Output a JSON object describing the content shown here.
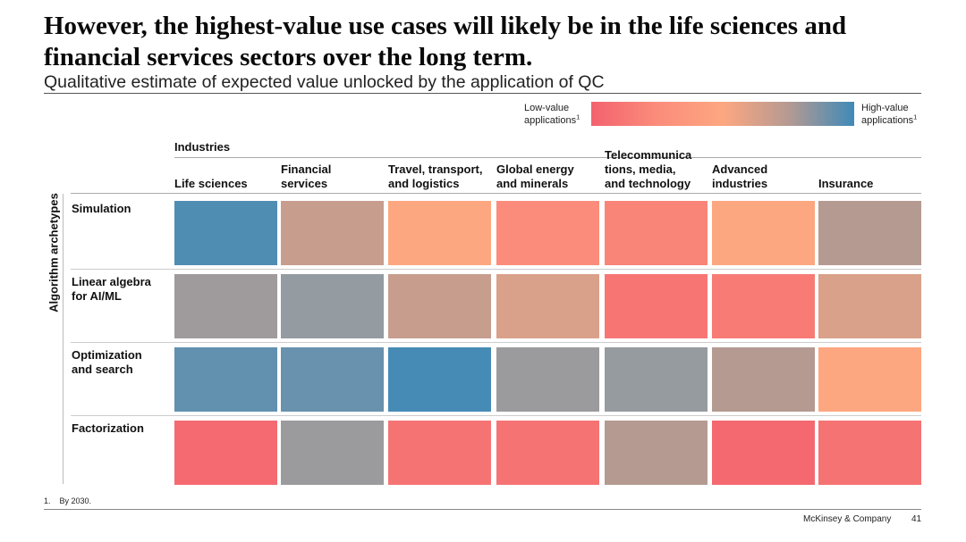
{
  "slide": {
    "title": "However, the highest-value use cases will likely be in the life sciences and financial services sectors over the long term.",
    "subtitle": "Qualitative estimate of expected value unlocked by the application of QC"
  },
  "legend": {
    "low_label": "Low-value applications",
    "low_marker": "1",
    "high_label": "High-value applications",
    "high_marker": "1",
    "low_color": "#f3626e",
    "high_color": "#3f8ab8"
  },
  "chart_data": {
    "type": "heatmap",
    "title": "Qualitative estimate of expected value unlocked by the application of QC",
    "x_group_label": "Industries",
    "y_axis_label": "Algorithm archetypes",
    "columns": [
      "Life sciences",
      "Financial services",
      "Travel, transport, and logistics",
      "Global energy and minerals",
      "Telecommunications, media, and technology",
      "Advanced industries",
      "Insurance"
    ],
    "column_display": [
      [
        "Life sciences"
      ],
      [
        "Financial",
        "services"
      ],
      [
        "Travel, transport,",
        "and logistics"
      ],
      [
        "Global energy",
        "and minerals"
      ],
      [
        "Telecommunica",
        "tions, media,",
        "and technology"
      ],
      [
        "Advanced",
        "industries"
      ],
      [
        "Insurance"
      ]
    ],
    "rows": [
      "Simulation",
      "Linear algebra for AI/ML",
      "Optimization and search",
      "Factorization"
    ],
    "row_display": [
      [
        "Simulation"
      ],
      [
        "Linear algebra",
        "for AI/ML"
      ],
      [
        "Optimization",
        "and search"
      ],
      [
        "Factorization"
      ]
    ],
    "scale": "0 = low-value applications, 1 = high-value applications",
    "values": [
      [
        0.95,
        0.55,
        0.4,
        0.25,
        0.2,
        0.4,
        0.6
      ],
      [
        0.7,
        0.75,
        0.55,
        0.5,
        0.12,
        0.15,
        0.5
      ],
      [
        0.9,
        0.88,
        0.98,
        0.72,
        0.74,
        0.6,
        0.4
      ],
      [
        0.05,
        0.72,
        0.1,
        0.1,
        0.6,
        0.04,
        0.1
      ]
    ],
    "value_scale": [
      {
        "stop": 0.0,
        "color": "#f3626e"
      },
      {
        "stop": 0.25,
        "color": "#fb8c7b"
      },
      {
        "stop": 0.4,
        "color": "#fda780"
      },
      {
        "stop": 0.6,
        "color": "#b59a92"
      },
      {
        "stop": 0.75,
        "color": "#949ba1"
      },
      {
        "stop": 1.0,
        "color": "#3f8ab8"
      }
    ]
  },
  "footnote": {
    "number": "1.",
    "text": "By 2030."
  },
  "footer": {
    "brand": "McKinsey & Company",
    "page": "41"
  }
}
